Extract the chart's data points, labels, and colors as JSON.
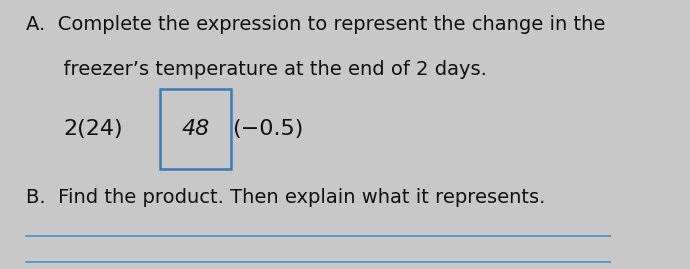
{
  "background_color": "#c8c8c8",
  "title_A": "A.  Complete the expression to represent the change in the",
  "title_A2": "      freezer’s temperature at the end of 2 days.",
  "expression_prefix": "2(24)",
  "expression_box": "48",
  "expression_suffix": "(−0.5)",
  "title_B": "B.  Find the product. Then explain what it represents.",
  "text_color": "#111111",
  "box_border_color": "#3a7ab8",
  "line_color": "#4a90c8",
  "font_size_main": 14,
  "font_size_expr": 16
}
